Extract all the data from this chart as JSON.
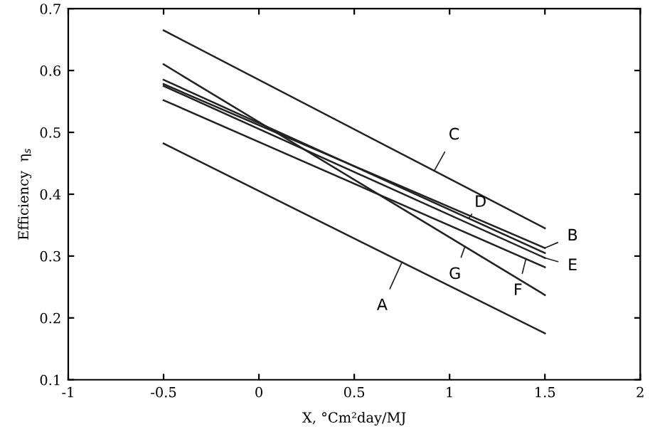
{
  "chart_data": {
    "type": "line",
    "xlabel": "X, °Cm²day/MJ",
    "ylabel": "Efficiency  η$_{s}$",
    "x": [
      -0.5,
      1.5
    ],
    "series": [
      {
        "color": "#222222",
        "values": [
          0.482,
          0.175
        ]
      },
      {
        "color": "#222222",
        "values": [
          0.578,
          0.313
        ]
      },
      {
        "color": "#222222",
        "values": [
          0.665,
          0.345
        ]
      },
      {
        "color": "#222222",
        "values": [
          0.585,
          0.305
        ]
      },
      {
        "color": "#222222",
        "values": [
          0.575,
          0.297
        ]
      },
      {
        "color": "#222222",
        "values": [
          0.552,
          0.282
        ]
      },
      {
        "color": "#222222",
        "values": [
          0.61,
          0.237
        ]
      }
    ],
    "annotations": [
      {
        "text": "A",
        "x": 0.75,
        "y": 0.29
      },
      {
        "text": "B",
        "x": 1.5,
        "y": 0.313
      },
      {
        "text": "C",
        "x": 0.92,
        "y": 0.438
      },
      {
        "text": "D",
        "x": 1.1,
        "y": 0.361
      },
      {
        "text": "E",
        "x": 1.5,
        "y": 0.297
      },
      {
        "text": "F",
        "x": 1.4,
        "y": 0.295
      },
      {
        "text": "G",
        "x": 1.08,
        "y": 0.315
      }
    ],
    "xlim": [
      -1,
      2
    ],
    "ylim": [
      0.1,
      0.7
    ],
    "xticks": [
      -1,
      -0.5,
      0,
      0.5,
      1,
      1.5,
      2
    ],
    "yticks": [
      0.1,
      0.2,
      0.3,
      0.4,
      0.5,
      0.6,
      0.7
    ],
    "grid": false,
    "legend": false,
    "marker": "none",
    "line_style": "solid"
  }
}
